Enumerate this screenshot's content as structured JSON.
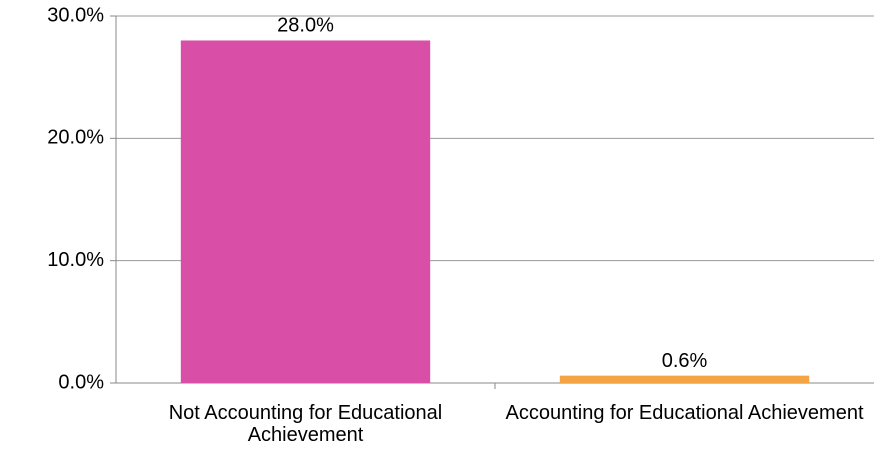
{
  "chart_data": {
    "type": "bar",
    "categories": [
      "Not Accounting for Educational Achievement",
      "Accounting for Educational Achievement"
    ],
    "values": [
      28.0,
      0.6
    ],
    "value_labels": [
      "28.0%",
      "0.6%"
    ],
    "colors": [
      "#d94fa8",
      "#f5a444"
    ],
    "ylim": [
      0,
      30
    ],
    "yticks": [
      {
        "value": 0,
        "label": "0.0%"
      },
      {
        "value": 10,
        "label": "10.0%"
      },
      {
        "value": 20,
        "label": "20.0%"
      },
      {
        "value": 30,
        "label": "30.0%"
      }
    ],
    "grid": true
  }
}
